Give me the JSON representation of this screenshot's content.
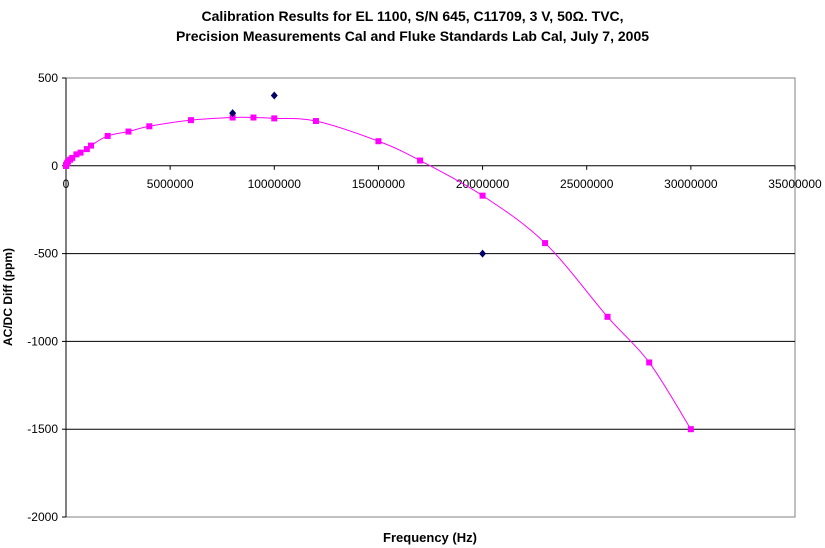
{
  "chart_data": {
    "type": "scatter",
    "title_line1": "Calibration Results for EL 1100, S/N 645, C11709, 3 V, 50Ω. TVC,",
    "title_line2": "Precision Measurements Cal and Fluke Standards Lab Cal, July 7, 2005",
    "xlabel": "Frequency (Hz)",
    "ylabel": "AC/DC Diff (ppm)",
    "xlim": [
      0,
      35000000
    ],
    "ylim": [
      -2000,
      500
    ],
    "x_ticks": [
      "0",
      "5000000",
      "10000000",
      "15000000",
      "20000000",
      "25000000",
      "30000000",
      "35000000"
    ],
    "y_ticks": [
      "500",
      "0",
      "-500",
      "-1000",
      "-1500",
      "-2000"
    ],
    "grid": "horizontal",
    "series": [
      {
        "color": "#ff00ff",
        "marker": "square",
        "line": true,
        "x": [
          10,
          20,
          40,
          100,
          1000,
          10000,
          50000,
          100000,
          200000,
          300000,
          500000,
          700000,
          1000000,
          1200000,
          2000000,
          3000000,
          4000000,
          6000000,
          8000000,
          9000000,
          10000000,
          12000000,
          15000000,
          17000000,
          20000000,
          23000000,
          26000000,
          28000000,
          30000000
        ],
        "y": [
          0,
          0,
          0,
          0,
          0,
          5,
          15,
          25,
          35,
          45,
          65,
          75,
          95,
          115,
          170,
          195,
          225,
          260,
          275,
          275,
          270,
          255,
          140,
          30,
          -170,
          -440,
          -860,
          -1120,
          -1500
        ]
      },
      {
        "color": "#000066",
        "marker": "diamond",
        "line": false,
        "x": [
          8000000,
          10000000,
          20000000
        ],
        "y": [
          300,
          400,
          -500
        ]
      }
    ]
  }
}
